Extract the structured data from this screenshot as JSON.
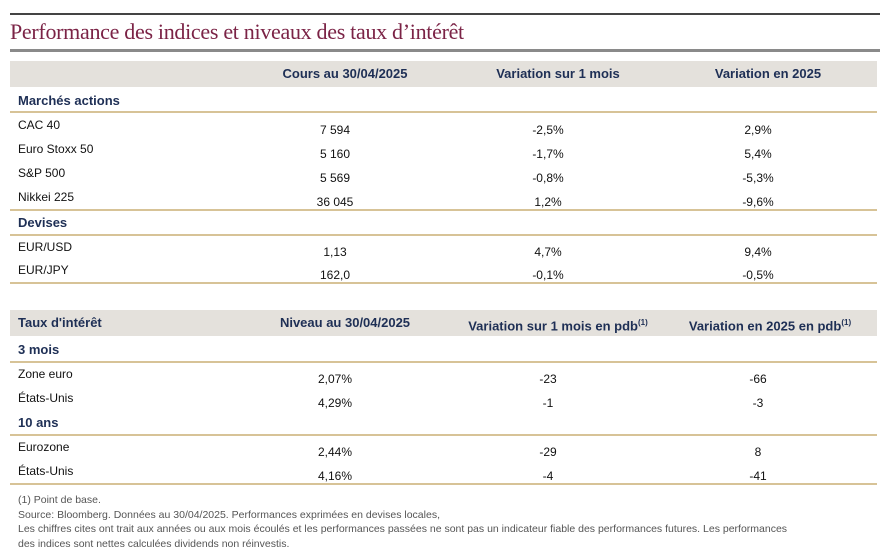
{
  "title": "Performance des indices et niveaux des taux d’intérêt",
  "table1": {
    "headers": [
      "",
      "Cours au 30/04/2025",
      "Variation sur 1 mois",
      "Variation en 2025"
    ],
    "groups": [
      {
        "name": "Marchés actions",
        "rows": [
          {
            "label": "CAC 40",
            "values": [
              "7 594",
              "-2,5%",
              "2,9%"
            ]
          },
          {
            "label": "Euro Stoxx 50",
            "values": [
              "5 160",
              "-1,7%",
              "5,4%"
            ]
          },
          {
            "label": "S&P 500",
            "values": [
              "5 569",
              "-0,8%",
              "-5,3%"
            ]
          },
          {
            "label": "Nikkei 225",
            "values": [
              "36 045",
              "1,2%",
              "-9,6%"
            ]
          }
        ]
      },
      {
        "name": "Devises",
        "rows": [
          {
            "label": "EUR/USD",
            "values": [
              "1,13",
              "4,7%",
              "9,4%"
            ]
          },
          {
            "label": "EUR/JPY",
            "values": [
              "162,0",
              "-0,1%",
              "-0,5%"
            ]
          }
        ]
      }
    ]
  },
  "table2": {
    "headers": [
      "Taux d'intérêt",
      "Niveau au 30/04/2025",
      "Variation sur 1 mois en pdb",
      "Variation en 2025 en pdb"
    ],
    "footnote_marker": "(1)",
    "groups": [
      {
        "name": "3 mois",
        "rows": [
          {
            "label": "Zone euro",
            "values": [
              "2,07%",
              "-23",
              "-66"
            ]
          },
          {
            "label": "États-Unis",
            "values": [
              "4,29%",
              "-1",
              "-3"
            ]
          }
        ]
      },
      {
        "name": "10 ans",
        "rows": [
          {
            "label": "Eurozone",
            "values": [
              "2,44%",
              "-29",
              "8"
            ]
          },
          {
            "label": "États-Unis",
            "values": [
              "4,16%",
              "-4",
              "-41"
            ]
          }
        ]
      }
    ]
  },
  "footnotes": [
    "(1) Point de base.",
    "Source: Bloomberg. Données au 30/04/2025. Performances exprimées en devises locales,",
    "Les chiffres cites ont trait aux années ou aux mois écoulés et les performances passées ne sont pas un indicateur fiable des performances futures. Les performances",
    "des indices sont nettes calculées dividends non réinvestis."
  ],
  "colors": {
    "title": "#7b2346",
    "header_text": "#1e2f55",
    "header_band": "#e4e1dc",
    "divider": "#d7c397"
  }
}
